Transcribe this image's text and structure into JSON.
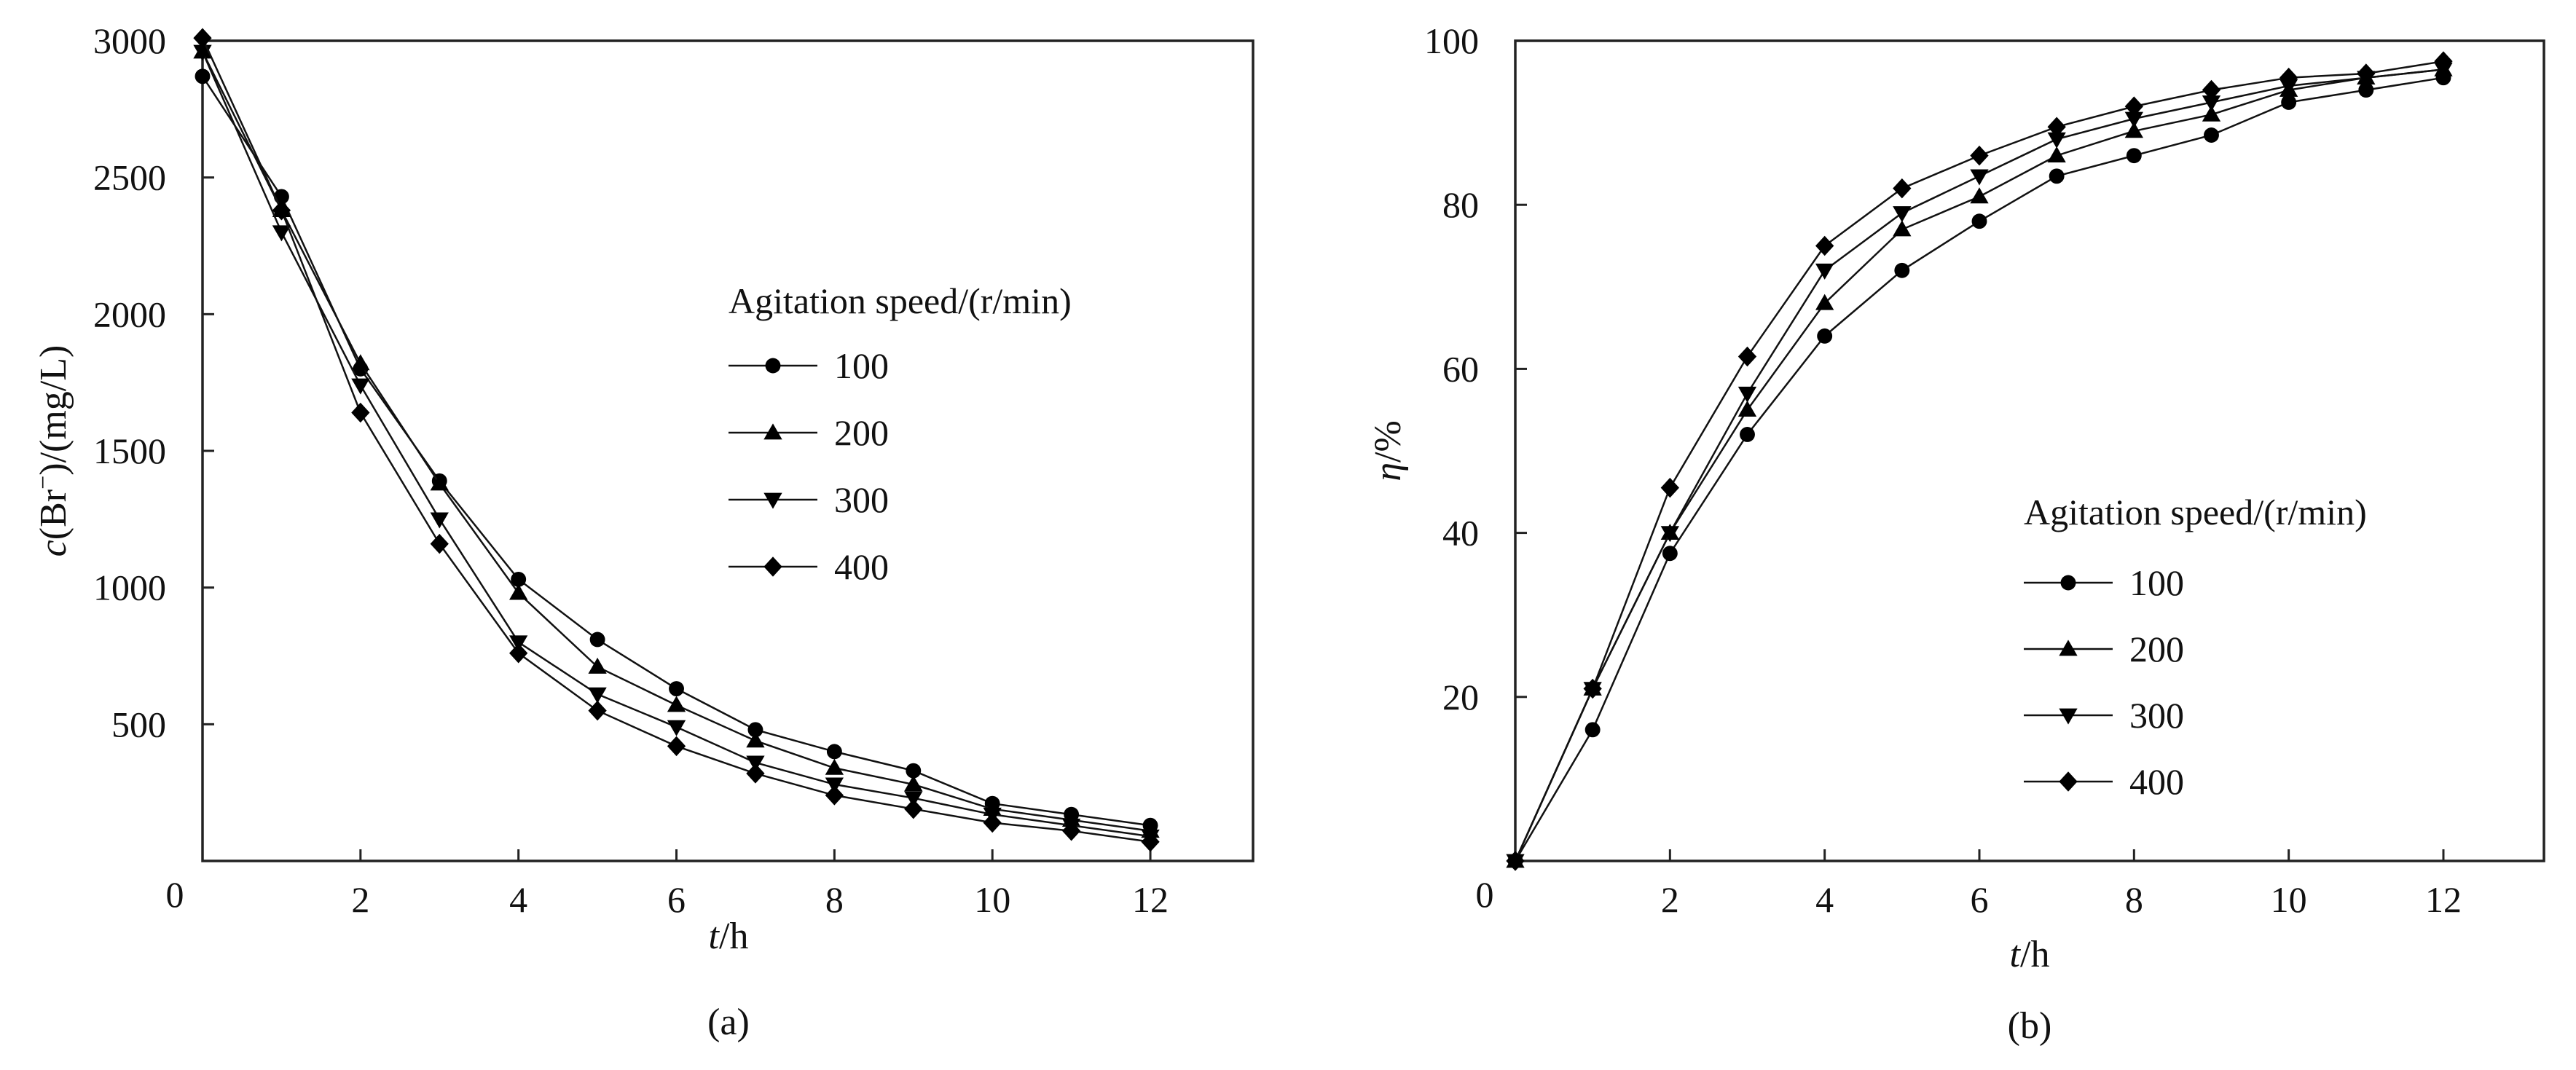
{
  "chart_data": [
    {
      "type": "line",
      "panel_label": "(a)",
      "xlabel_italic": "t",
      "xlabel_rest": "/h",
      "ylabel_c": "c",
      "ylabel_mid": "(Br",
      "ylabel_sup": "−",
      "ylabel_end": ")/(mg/L)",
      "xlim": [
        0,
        13.3
      ],
      "ylim": [
        0,
        3000
      ],
      "ytick_max_display": 3000,
      "x_ticks": [
        0,
        2,
        4,
        6,
        8,
        10,
        12
      ],
      "x_tick_labels": [
        "0",
        "2",
        "4",
        "6",
        "8",
        "10",
        "12"
      ],
      "y_ticks": [
        500,
        1000,
        1500,
        2000,
        2500,
        3000
      ],
      "y_tick_labels": [
        "500",
        "1000",
        "1500",
        "2000",
        "2500",
        "3000"
      ],
      "legend_title": "Agitation speed/(r/min)",
      "legend_position": "center-right",
      "x": [
        0,
        1,
        2,
        3,
        4,
        5,
        6,
        7,
        8,
        9,
        10,
        11,
        12
      ],
      "series": [
        {
          "name": "100",
          "marker": "circle",
          "values": [
            2870,
            2430,
            1800,
            1390,
            1030,
            810,
            630,
            480,
            400,
            330,
            210,
            170,
            130
          ]
        },
        {
          "name": "200",
          "marker": "triangle-up",
          "values": [
            2960,
            2380,
            1820,
            1380,
            980,
            710,
            570,
            440,
            340,
            280,
            190,
            150,
            110
          ]
        },
        {
          "name": "300",
          "marker": "triangle-down",
          "values": [
            2960,
            2300,
            1740,
            1250,
            800,
            610,
            490,
            360,
            280,
            230,
            170,
            130,
            90
          ]
        },
        {
          "name": "400",
          "marker": "diamond",
          "values": [
            3010,
            2380,
            1640,
            1160,
            760,
            550,
            420,
            320,
            240,
            190,
            140,
            110,
            70
          ]
        }
      ]
    },
    {
      "type": "line",
      "panel_label": "(b)",
      "xlabel_italic": "t",
      "xlabel_rest": "/h",
      "ylabel_italic": "η",
      "ylabel_rest": "/%",
      "xlim": [
        0,
        13.3
      ],
      "ylim": [
        0,
        100
      ],
      "x_ticks": [
        0,
        2,
        4,
        6,
        8,
        10,
        12
      ],
      "x_tick_labels": [
        "0",
        "2",
        "4",
        "6",
        "8",
        "10",
        "12"
      ],
      "y_ticks": [
        20,
        40,
        60,
        80,
        100
      ],
      "y_tick_labels": [
        "20",
        "40",
        "60",
        "80",
        "100"
      ],
      "legend_title": "Agitation speed/(r/min)",
      "legend_position": "lower-center",
      "x": [
        0,
        1,
        2,
        3,
        4,
        5,
        6,
        7,
        8,
        9,
        10,
        11,
        12
      ],
      "series": [
        {
          "name": "100",
          "marker": "circle",
          "values": [
            0,
            16,
            37.5,
            52,
            64,
            72,
            78,
            83.5,
            86,
            88.5,
            92.5,
            94,
            95.5
          ]
        },
        {
          "name": "200",
          "marker": "triangle-up",
          "values": [
            0,
            21,
            40,
            55,
            68,
            77,
            81,
            86,
            89,
            91,
            94,
            95.5,
            96.5
          ]
        },
        {
          "name": "300",
          "marker": "triangle-down",
          "values": [
            0,
            21,
            40,
            57,
            72,
            79,
            83.5,
            88,
            90.5,
            92.5,
            94.5,
            95.5,
            96.5
          ]
        },
        {
          "name": "400",
          "marker": "diamond",
          "values": [
            0,
            21,
            45.5,
            61.5,
            75,
            82,
            86,
            89.5,
            92,
            94,
            95.5,
            96,
            97.5
          ]
        }
      ]
    }
  ]
}
